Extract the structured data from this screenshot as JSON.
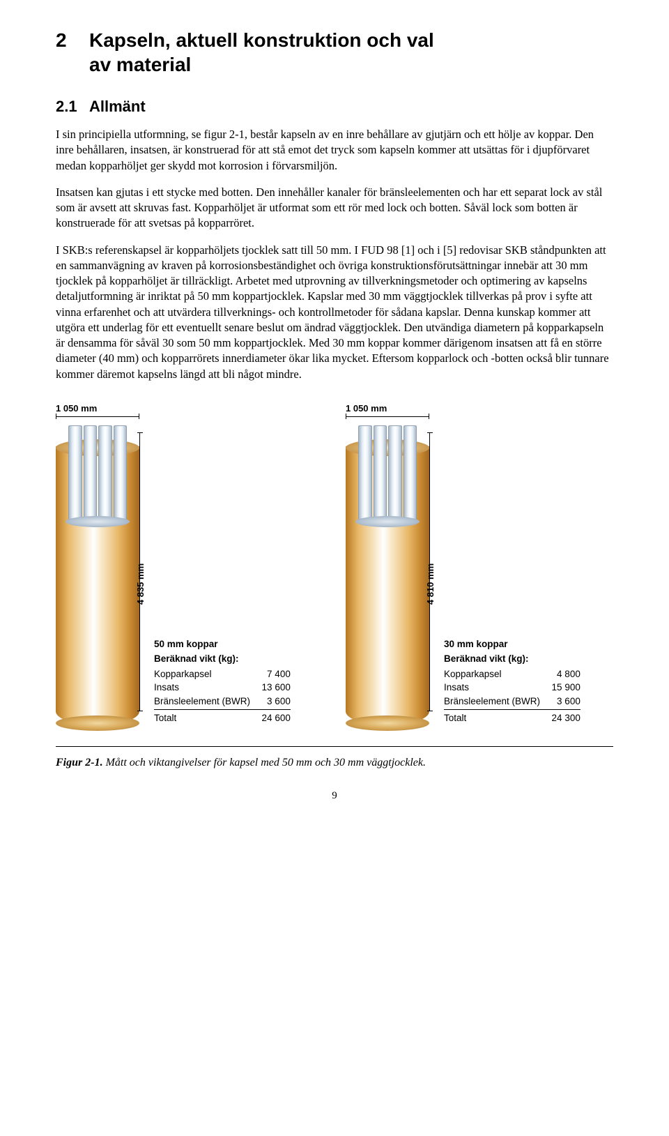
{
  "chapter": {
    "number": "2",
    "title_line1": "Kapseln, aktuell konstruktion och val",
    "title_line2": "av material"
  },
  "section": {
    "number": "2.1",
    "title": "Allmänt"
  },
  "paragraphs": {
    "p1": "I sin principiella utformning, se figur 2-1, består kapseln av en inre behållare av gjutjärn och ett hölje av koppar. Den inre behållaren, insatsen, är konstruerad för att stå emot det tryck som kapseln kommer att utsättas för i djupförvaret medan kopparhöljet ger skydd mot korrosion i förvarsmiljön.",
    "p2": "Insatsen kan gjutas i ett stycke med botten. Den innehåller kanaler för bränsleelementen och har ett separat lock av stål som är avsett att skruvas fast. Kopparhöljet är utformat som ett rör med lock och botten. Såväl lock som botten är konstruerade för att svetsas på kopparröret.",
    "p3": "I SKB:s referenskapsel är kopparhöljets tjocklek satt till 50 mm. I FUD 98 [1] och i [5] redovisar SKB ståndpunkten att en sammanvägning av kraven på korrosionsbeständighet och övriga konstruktionsförutsättningar innebär att 30 mm tjocklek på kopparhöljet är tillräckligt. Arbetet med utprovning av tillverkningsmetoder och optimering av kapselns detaljutformning är inriktat på 50 mm koppartjocklek. Kapslar med 30 mm väggtjocklek tillverkas på prov i syfte att vinna erfarenhet och att utvärdera tillverknings- och kontrollmetoder för sådana kapslar. Denna kunskap kommer att utgöra ett underlag för ett eventuellt senare beslut om ändrad väggtjocklek. Den utvändiga diametern på kopparkapseln är densamma för såväl 30 som 50 mm koppartjocklek. Med 30 mm koppar kommer därigenom insatsen att få en större diameter (40 mm) och kopparrörets innerdiameter ökar lika mycket. Eftersom kopparlock och -botten också blir tunnare kommer däremot kapselns längd att bli något mindre."
  },
  "figures": {
    "left": {
      "width_label": "1 050 mm",
      "height_label": "4 835 mm",
      "copper_title": "50 mm koppar",
      "weight_subtitle": "Beräknad vikt (kg):",
      "rows": [
        {
          "label": "Kopparkapsel",
          "value": "7 400"
        },
        {
          "label": "Insats",
          "value": "13 600"
        },
        {
          "label": "Bränsleelement (BWR)",
          "value": "3 600"
        }
      ],
      "total": {
        "label": "Totalt",
        "value": "24 600"
      },
      "colors": {
        "copper_light": "#f8e8c8",
        "copper_mid": "#e8b868",
        "copper_dark": "#b87820",
        "steel_light": "#e8f0f8",
        "steel_dark": "#a8b8c8"
      }
    },
    "right": {
      "width_label": "1 050 mm",
      "height_label": "4 810 mm",
      "copper_title": "30 mm koppar",
      "weight_subtitle": "Beräknad vikt (kg):",
      "rows": [
        {
          "label": "Kopparkapsel",
          "value": "4 800"
        },
        {
          "label": "Insats",
          "value": "15 900"
        },
        {
          "label": "Bränsleelement (BWR)",
          "value": "3 600"
        }
      ],
      "total": {
        "label": "Totalt",
        "value": "24 300"
      },
      "colors": {
        "copper_light": "#f8e8c8",
        "copper_mid": "#e8b868",
        "copper_dark": "#b87820",
        "steel_light": "#e8f0f8",
        "steel_dark": "#a8b8c8"
      }
    }
  },
  "caption": {
    "label": "Figur 2-1.",
    "text": " Mått och viktangivelser för kapsel med 50 mm och 30 mm väggtjocklek."
  },
  "page_number": "9"
}
